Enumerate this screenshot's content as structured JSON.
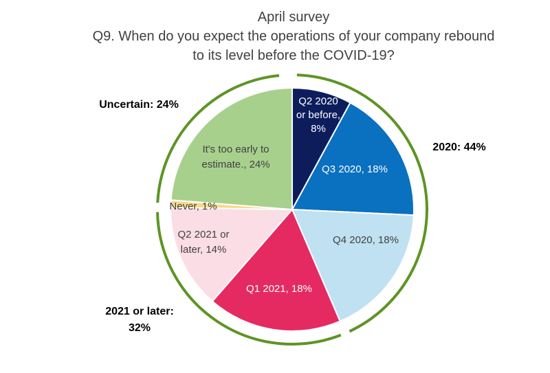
{
  "chart_data": {
    "type": "pie",
    "title": "April survey",
    "subtitle_lines": [
      "Q9. When do you expect the operations of your company rebound",
      "to its level before the COVID-19?"
    ],
    "slices": [
      {
        "label_lines": [
          "Q2 2020",
          "or before,",
          "8%"
        ],
        "value": 8,
        "color": "#0d1d5c",
        "text_color": "#ffffff"
      },
      {
        "label_lines": [
          "Q3 2020, 18%"
        ],
        "value": 18,
        "color": "#0a70c0",
        "text_color": "#ffffff"
      },
      {
        "label_lines": [
          "Q4 2020, 18%"
        ],
        "value": 18,
        "color": "#bfe1f2",
        "text_color": "#404040"
      },
      {
        "label_lines": [
          "Q1 2021, 18%"
        ],
        "value": 18,
        "color": "#e52a62",
        "text_color": "#ffffff"
      },
      {
        "label_lines": [
          "Q2 2021 or",
          "later, 14%"
        ],
        "value": 14,
        "color": "#fbdde6",
        "text_color": "#404040"
      },
      {
        "label_lines": [
          "Never, 1%"
        ],
        "value": 1,
        "color": "#f7d98a",
        "text_color": "#404040"
      },
      {
        "label_lines": [
          "It's too early to",
          "estimate., 24%"
        ],
        "value": 24,
        "color": "#a8d08d",
        "text_color": "#404040"
      }
    ],
    "groups": [
      {
        "label_lines": [
          "2020: 44%"
        ],
        "value": 44,
        "color": "#5e9424"
      },
      {
        "label_lines": [
          "2021 or later:",
          "32%"
        ],
        "value": 32,
        "color": "#5e9424"
      },
      {
        "label_lines": [
          "Uncertain: 24%"
        ],
        "value": 24,
        "color": "#5e9424"
      }
    ]
  }
}
